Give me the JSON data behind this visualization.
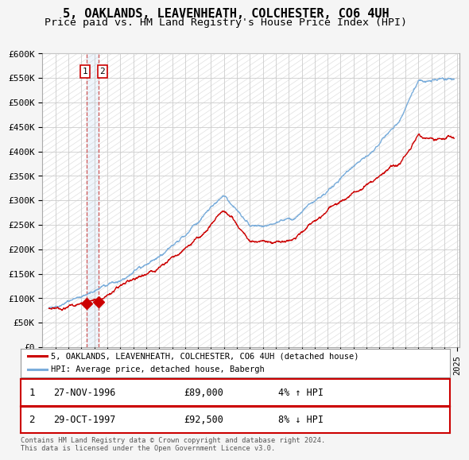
{
  "title": "5, OAKLANDS, LEAVENHEATH, COLCHESTER, CO6 4UH",
  "subtitle": "Price paid vs. HM Land Registry's House Price Index (HPI)",
  "ylim": [
    0,
    600000
  ],
  "yticks": [
    0,
    50000,
    100000,
    150000,
    200000,
    250000,
    300000,
    350000,
    400000,
    450000,
    500000,
    550000,
    600000
  ],
  "ytick_labels": [
    "£0",
    "£50K",
    "£100K",
    "£150K",
    "£200K",
    "£250K",
    "£300K",
    "£350K",
    "£400K",
    "£450K",
    "£500K",
    "£550K",
    "£600K"
  ],
  "sale1": {
    "date_num": 1996.9,
    "price": 89000,
    "label": "1",
    "date_str": "27-NOV-1996",
    "price_str": "£89,000",
    "note": "4% ↑ HPI"
  },
  "sale2": {
    "date_num": 1997.83,
    "price": 92500,
    "label": "2",
    "date_str": "29-OCT-1997",
    "price_str": "£92,500",
    "note": "8% ↓ HPI"
  },
  "legend_house": "5, OAKLANDS, LEAVENHEATH, COLCHESTER, CO6 4UH (detached house)",
  "legend_hpi": "HPI: Average price, detached house, Babergh",
  "footnote": "Contains HM Land Registry data © Crown copyright and database right 2024.\nThis data is licensed under the Open Government Licence v3.0.",
  "house_color": "#cc0000",
  "hpi_color": "#7aaddb",
  "background_color": "#f5f5f5",
  "plot_bg_color": "#ffffff",
  "grid_color": "#cccccc",
  "hatch_color": "#e0e0e0",
  "title_fontsize": 11,
  "subtitle_fontsize": 9.5,
  "tick_fontsize": 8
}
